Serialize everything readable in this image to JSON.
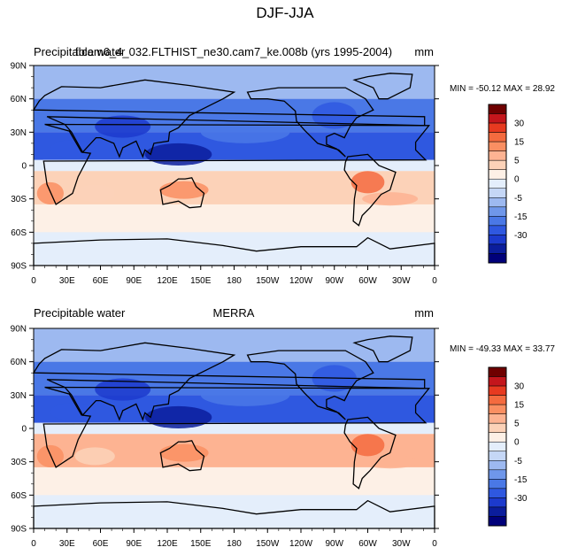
{
  "figure": {
    "title": "DJF-JJA"
  },
  "chart_data": [
    {
      "type": "heatmap",
      "left_title": "Precipitable water",
      "center_title": "f.cam6_4_032.FLTHIST_ne30.cam7_ke.008b (yrs 1995-2004)",
      "units": "mm",
      "stats": "MIN = -50.12 MAX =  28.92",
      "x_ticks": [
        "0",
        "30E",
        "60E",
        "90E",
        "120E",
        "150E",
        "180",
        "150W",
        "120W",
        "90W",
        "60W",
        "30W",
        "0"
      ],
      "y_ticks": [
        "90N",
        "60N",
        "30N",
        "0",
        "30S",
        "60S",
        "90S"
      ],
      "xlim": [
        0,
        360
      ],
      "ylim": [
        -90,
        90
      ],
      "lat_bands": [
        {
          "lat": [
            60,
            90
          ],
          "mean": -10
        },
        {
          "lat": [
            30,
            60
          ],
          "mean": -20
        },
        {
          "lat": [
            5,
            30
          ],
          "mean": -25
        },
        {
          "lat": [
            -5,
            5
          ],
          "mean": 0
        },
        {
          "lat": [
            -35,
            -5
          ],
          "mean": 10
        },
        {
          "lat": [
            -60,
            -35
          ],
          "mean": 4
        },
        {
          "lat": [
            -90,
            -60
          ],
          "mean": 1
        }
      ]
    },
    {
      "type": "heatmap",
      "left_title": "Precipitable water",
      "center_title": "MERRA",
      "units": "mm",
      "stats": "MIN = -49.33 MAX =  33.77",
      "x_ticks": [
        "0",
        "30E",
        "60E",
        "90E",
        "120E",
        "150E",
        "180",
        "150W",
        "120W",
        "90W",
        "60W",
        "30W",
        "0"
      ],
      "y_ticks": [
        "90N",
        "60N",
        "30N",
        "0",
        "30S",
        "60S",
        "90S"
      ],
      "xlim": [
        0,
        360
      ],
      "ylim": [
        -90,
        90
      ],
      "lat_bands": [
        {
          "lat": [
            60,
            90
          ],
          "mean": -10
        },
        {
          "lat": [
            30,
            60
          ],
          "mean": -20
        },
        {
          "lat": [
            5,
            30
          ],
          "mean": -25
        },
        {
          "lat": [
            -5,
            5
          ],
          "mean": 0
        },
        {
          "lat": [
            -35,
            -5
          ],
          "mean": 12
        },
        {
          "lat": [
            -60,
            -35
          ],
          "mean": 4
        },
        {
          "lat": [
            -90,
            -60
          ],
          "mean": 1
        }
      ]
    }
  ],
  "colorbar": {
    "labels": [
      "30",
      "15",
      "5",
      "0",
      "-5",
      "-15",
      "-30"
    ],
    "colors": [
      "#6f0000",
      "#c4161c",
      "#e73a20",
      "#f46b3f",
      "#fa8f62",
      "#fdb392",
      "#fcd2b8",
      "#fdf0e6",
      "#e4eefb",
      "#c5d7f6",
      "#9db9f0",
      "#6f97ea",
      "#4a78e6",
      "#2f58e0",
      "#1c3acd",
      "#0b1d9c",
      "#00007a"
    ]
  }
}
